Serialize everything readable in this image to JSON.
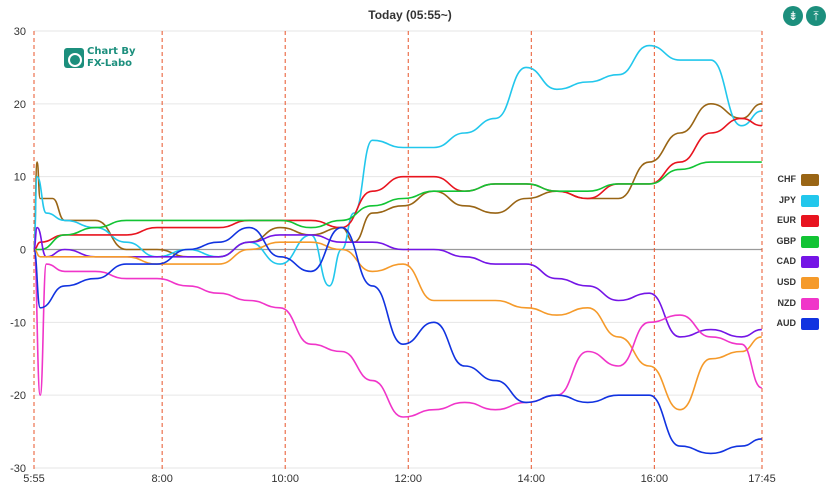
{
  "title": "Today  (05:55~)",
  "logo": {
    "line1": "Chart By",
    "line2": "FX-Labo"
  },
  "toolbar": {
    "left_icon": "compress-icon",
    "right_icon": "align-top-icon"
  },
  "chart_data": {
    "type": "line",
    "title": "Today  (05:55~)",
    "xlabel": "",
    "ylabel": "",
    "ylim": [
      -30,
      30
    ],
    "y_ticks": [
      30,
      20,
      10,
      0,
      -10,
      -20,
      -30
    ],
    "x_ticks": [
      "5:55",
      "8:00",
      "10:00",
      "12:00",
      "14:00",
      "16:00",
      "17:45"
    ],
    "x_tick_positions": [
      0,
      2.083,
      4.083,
      6.083,
      8.083,
      10.083,
      11.833
    ],
    "x_range": [
      0,
      11.833
    ],
    "grid": true,
    "legend_position": "right",
    "series": [
      {
        "name": "CHF",
        "color": "#996515",
        "points": [
          [
            0,
            0
          ],
          [
            0.05,
            12
          ],
          [
            0.1,
            7
          ],
          [
            0.3,
            7
          ],
          [
            0.5,
            4
          ],
          [
            1,
            4
          ],
          [
            1.5,
            0
          ],
          [
            2,
            0
          ],
          [
            2.5,
            -1
          ],
          [
            3,
            -1
          ],
          [
            3.5,
            1
          ],
          [
            4,
            3
          ],
          [
            4.5,
            2
          ],
          [
            5,
            3
          ],
          [
            5.2,
            1
          ],
          [
            5.5,
            5
          ],
          [
            6,
            6
          ],
          [
            6.5,
            8
          ],
          [
            7,
            6
          ],
          [
            7.5,
            5
          ],
          [
            8,
            7
          ],
          [
            8.5,
            8
          ],
          [
            9,
            7
          ],
          [
            9.5,
            7
          ],
          [
            10,
            12
          ],
          [
            10.5,
            16
          ],
          [
            11,
            20
          ],
          [
            11.5,
            18
          ],
          [
            11.83,
            20
          ]
        ]
      },
      {
        "name": "JPY",
        "color": "#22C7EC",
        "points": [
          [
            0,
            0
          ],
          [
            0.05,
            10
          ],
          [
            0.2,
            5
          ],
          [
            0.5,
            4
          ],
          [
            1,
            3
          ],
          [
            1.5,
            1
          ],
          [
            2,
            -1
          ],
          [
            2.5,
            0
          ],
          [
            3,
            -1
          ],
          [
            3.5,
            1
          ],
          [
            4,
            -2
          ],
          [
            4.5,
            2
          ],
          [
            4.8,
            -5
          ],
          [
            5,
            0
          ],
          [
            5.2,
            5
          ],
          [
            5.5,
            15
          ],
          [
            6,
            14
          ],
          [
            6.5,
            14
          ],
          [
            7,
            16
          ],
          [
            7.5,
            18
          ],
          [
            8,
            25
          ],
          [
            8.5,
            22
          ],
          [
            9,
            23
          ],
          [
            9.5,
            24
          ],
          [
            10,
            28
          ],
          [
            10.5,
            26
          ],
          [
            11,
            26
          ],
          [
            11.5,
            17
          ],
          [
            11.83,
            19
          ]
        ]
      },
      {
        "name": "EUR",
        "color": "#E8141F",
        "points": [
          [
            0,
            0
          ],
          [
            0.1,
            1
          ],
          [
            0.5,
            2
          ],
          [
            1,
            2
          ],
          [
            1.5,
            2
          ],
          [
            2,
            3
          ],
          [
            2.5,
            3
          ],
          [
            3,
            3
          ],
          [
            3.5,
            4
          ],
          [
            4,
            4
          ],
          [
            4.5,
            4
          ],
          [
            5,
            3
          ],
          [
            5.5,
            8
          ],
          [
            6,
            10
          ],
          [
            6.5,
            10
          ],
          [
            7,
            8
          ],
          [
            7.5,
            9
          ],
          [
            8,
            9
          ],
          [
            8.5,
            8
          ],
          [
            9,
            7
          ],
          [
            9.5,
            9
          ],
          [
            10,
            9
          ],
          [
            10.5,
            12
          ],
          [
            11,
            16
          ],
          [
            11.5,
            18
          ],
          [
            11.83,
            17
          ]
        ]
      },
      {
        "name": "GBP",
        "color": "#12C434",
        "points": [
          [
            0,
            0
          ],
          [
            0.1,
            0
          ],
          [
            0.5,
            2
          ],
          [
            1,
            3
          ],
          [
            1.5,
            4
          ],
          [
            2,
            4
          ],
          [
            2.5,
            4
          ],
          [
            3,
            4
          ],
          [
            3.5,
            4
          ],
          [
            4,
            4
          ],
          [
            4.5,
            3
          ],
          [
            5,
            4
          ],
          [
            5.5,
            6
          ],
          [
            6,
            7
          ],
          [
            6.5,
            8
          ],
          [
            7,
            8
          ],
          [
            7.5,
            9
          ],
          [
            8,
            9
          ],
          [
            8.5,
            8
          ],
          [
            9,
            8
          ],
          [
            9.5,
            9
          ],
          [
            10,
            9
          ],
          [
            10.5,
            11
          ],
          [
            11,
            12
          ],
          [
            11.5,
            12
          ],
          [
            11.83,
            12
          ]
        ]
      },
      {
        "name": "CAD",
        "color": "#7415E6",
        "points": [
          [
            0,
            0
          ],
          [
            0.05,
            3
          ],
          [
            0.2,
            -1
          ],
          [
            0.5,
            0
          ],
          [
            1,
            -1
          ],
          [
            1.5,
            -1
          ],
          [
            2,
            -1
          ],
          [
            2.5,
            -1
          ],
          [
            3,
            -1
          ],
          [
            3.5,
            1
          ],
          [
            4,
            2
          ],
          [
            4.5,
            2
          ],
          [
            5,
            1
          ],
          [
            5.5,
            1
          ],
          [
            6,
            0
          ],
          [
            6.5,
            0
          ],
          [
            7,
            -1
          ],
          [
            7.5,
            -2
          ],
          [
            8,
            -2
          ],
          [
            8.5,
            -4
          ],
          [
            9,
            -5
          ],
          [
            9.5,
            -7
          ],
          [
            10,
            -6
          ],
          [
            10.5,
            -12
          ],
          [
            11,
            -11
          ],
          [
            11.5,
            -12
          ],
          [
            11.83,
            -11
          ]
        ]
      },
      {
        "name": "USD",
        "color": "#F59A2A",
        "points": [
          [
            0,
            0
          ],
          [
            0.1,
            -1
          ],
          [
            0.5,
            -1
          ],
          [
            1,
            -1
          ],
          [
            1.5,
            -1
          ],
          [
            2,
            -2
          ],
          [
            2.5,
            -2
          ],
          [
            3,
            -2
          ],
          [
            3.5,
            0
          ],
          [
            4,
            1
          ],
          [
            4.5,
            1
          ],
          [
            5,
            0
          ],
          [
            5.5,
            -3
          ],
          [
            6,
            -2
          ],
          [
            6.5,
            -7
          ],
          [
            7,
            -7
          ],
          [
            7.5,
            -7
          ],
          [
            8,
            -8
          ],
          [
            8.5,
            -9
          ],
          [
            9,
            -8
          ],
          [
            9.5,
            -12
          ],
          [
            10,
            -16
          ],
          [
            10.5,
            -22
          ],
          [
            11,
            -15
          ],
          [
            11.5,
            -14
          ],
          [
            11.83,
            -12
          ]
        ]
      },
      {
        "name": "NZD",
        "color": "#F035C9",
        "points": [
          [
            0,
            0
          ],
          [
            0.1,
            -20
          ],
          [
            0.2,
            -2
          ],
          [
            0.5,
            -3
          ],
          [
            1,
            -3
          ],
          [
            1.5,
            -4
          ],
          [
            2,
            -4
          ],
          [
            2.5,
            -5
          ],
          [
            3,
            -6
          ],
          [
            3.5,
            -7
          ],
          [
            4,
            -8
          ],
          [
            4.5,
            -13
          ],
          [
            5,
            -14
          ],
          [
            5.5,
            -18
          ],
          [
            6,
            -23
          ],
          [
            6.5,
            -22
          ],
          [
            7,
            -21
          ],
          [
            7.5,
            -22
          ],
          [
            8,
            -21
          ],
          [
            8.5,
            -20
          ],
          [
            9,
            -14
          ],
          [
            9.5,
            -16
          ],
          [
            10,
            -10
          ],
          [
            10.5,
            -9
          ],
          [
            11,
            -12
          ],
          [
            11.5,
            -13
          ],
          [
            11.83,
            -19
          ]
        ]
      },
      {
        "name": "AUD",
        "color": "#1133E0",
        "points": [
          [
            0,
            0
          ],
          [
            0.1,
            -8
          ],
          [
            0.5,
            -5
          ],
          [
            1,
            -4
          ],
          [
            1.5,
            -2
          ],
          [
            2,
            -2
          ],
          [
            2.5,
            0
          ],
          [
            3,
            1
          ],
          [
            3.5,
            3
          ],
          [
            4,
            -1
          ],
          [
            4.5,
            -3
          ],
          [
            5,
            3
          ],
          [
            5.5,
            -5
          ],
          [
            6,
            -13
          ],
          [
            6.5,
            -10
          ],
          [
            7,
            -16
          ],
          [
            7.5,
            -18
          ],
          [
            8,
            -21
          ],
          [
            8.5,
            -20
          ],
          [
            9,
            -21
          ],
          [
            9.5,
            -20
          ],
          [
            10,
            -20
          ],
          [
            10.5,
            -27
          ],
          [
            11,
            -28
          ],
          [
            11.5,
            -27
          ],
          [
            11.83,
            -26
          ]
        ]
      }
    ]
  }
}
